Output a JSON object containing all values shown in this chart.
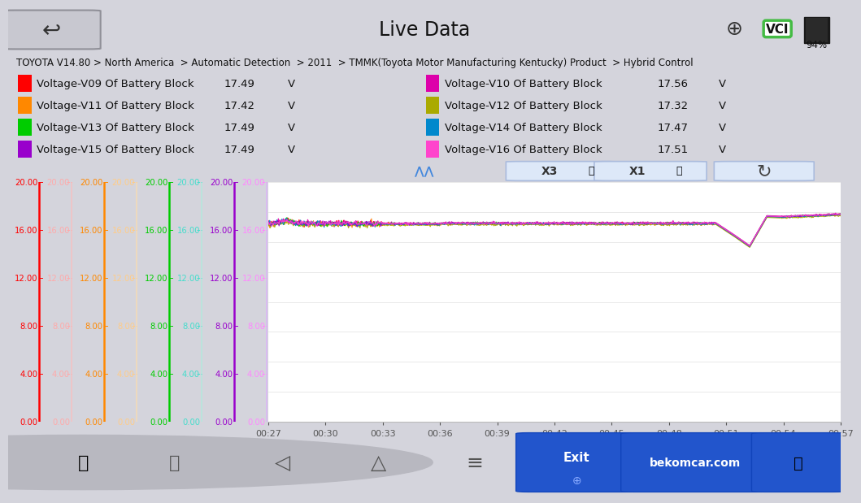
{
  "title": "Live Data",
  "breadcrumb": "TOYOTA V14.80 > North America  > Automatic Detection  > 2011  > TMMK(Toyota Motor Manufacturing Kentucky) Product  > Hybrid Control",
  "battery_pct": "94%",
  "header_bg": "#d4d4dc",
  "breadcrumb_bg": "#dce8f0",
  "table_bg_light": "#e4eef8",
  "chart_bg": "#ffffff",
  "bottom_bar_bg": "#c0c0c8",
  "rows": [
    {
      "color": "#ff0000",
      "label": "Voltage-V09 Of Battery Block",
      "value": "17.49",
      "unit": "V"
    },
    {
      "color": "#ff8800",
      "label": "Voltage-V11 Of Battery Block",
      "value": "17.42",
      "unit": "V"
    },
    {
      "color": "#00cc00",
      "label": "Voltage-V13 Of Battery Block",
      "value": "17.49",
      "unit": "V"
    },
    {
      "color": "#9900cc",
      "label": "Voltage-V15 Of Battery Block",
      "value": "17.49",
      "unit": "V"
    }
  ],
  "rows_right": [
    {
      "color": "#dd00aa",
      "label": "Voltage-V10 Of Battery Block",
      "value": "17.56",
      "unit": "V"
    },
    {
      "color": "#aaaa00",
      "label": "Voltage-V12 Of Battery Block",
      "value": "17.32",
      "unit": "V"
    },
    {
      "color": "#0088cc",
      "label": "Voltage-V14 Of Battery Block",
      "value": "17.47",
      "unit": "V"
    },
    {
      "color": "#ff44cc",
      "label": "Voltage-V16 Of Battery Block",
      "value": "17.51",
      "unit": "V"
    }
  ],
  "yticks": [
    0.0,
    4.0,
    8.0,
    12.0,
    16.0,
    20.0
  ],
  "xticks": [
    "00:27",
    "00:30",
    "00:33",
    "00:36",
    "00:39",
    "00:42",
    "00:45",
    "00:48",
    "00:51",
    "00:54",
    "00:57"
  ],
  "axis_main_colors": [
    "#ff0000",
    "#ff8800",
    "#00cc00",
    "#9900cc"
  ],
  "axis_sub_colors": [
    "#ffaaaa",
    "#ffcc88",
    "#44ddcc",
    "#ff88ff"
  ],
  "axis_border_colors": [
    "#ffbbbb",
    "#ffddaa",
    "#aaeedd",
    "#ddaaff"
  ],
  "line_colors": [
    "#ff0000",
    "#dd00aa",
    "#ff8800",
    "#aaaa00",
    "#00cc00",
    "#0088cc",
    "#9900cc",
    "#ff44cc"
  ],
  "chart_ylim": [
    0,
    20
  ],
  "base_voltages": [
    16.55,
    16.6,
    16.5,
    16.45,
    16.55,
    16.52,
    16.55,
    16.57
  ]
}
